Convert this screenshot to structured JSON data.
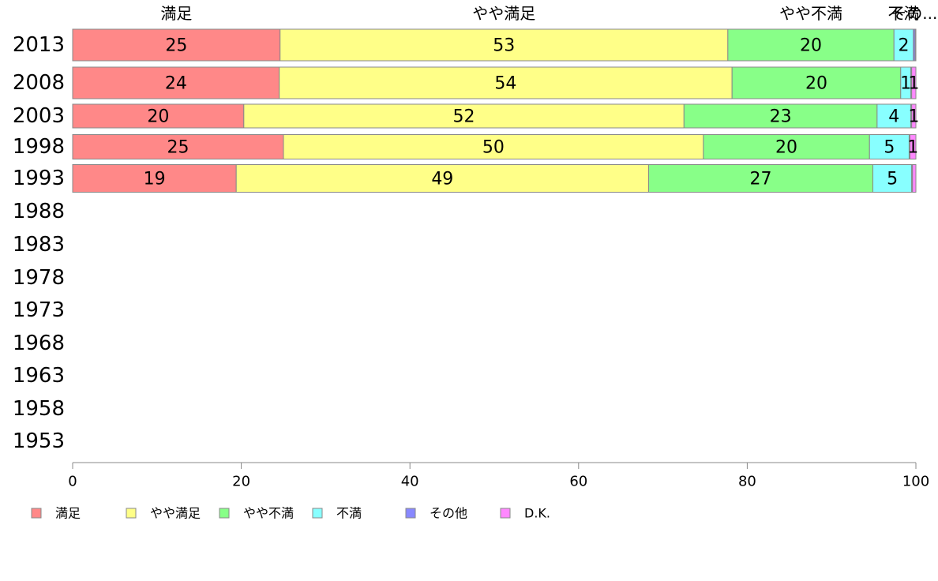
{
  "chart_data": {
    "type": "bar",
    "orientation": "horizontal",
    "stacked": true,
    "percent": true,
    "categories": [
      "2013",
      "2008",
      "2003",
      "1998",
      "1993",
      "1988",
      "1983",
      "1978",
      "1973",
      "1968",
      "1963",
      "1958",
      "1953"
    ],
    "xlim": [
      0,
      100
    ],
    "xticks": [
      0,
      20,
      40,
      60,
      80,
      100
    ],
    "grid": false,
    "legend_position": "bottom-left",
    "column_headers": [
      "満足",
      "やや満足",
      "やや不満",
      "不満",
      "その..."
    ],
    "series": [
      {
        "name": "満足",
        "color": "#ff8888",
        "values": [
          24.6,
          24.5,
          20.3,
          25.0,
          19.4,
          null,
          null,
          null,
          null,
          null,
          null,
          null,
          null
        ],
        "labels": [
          "25",
          "24",
          "20",
          "25",
          "19"
        ]
      },
      {
        "name": "やや満足",
        "color": "#ffff88",
        "values": [
          53.1,
          53.7,
          52.2,
          49.8,
          48.9,
          null,
          null,
          null,
          null,
          null,
          null,
          null,
          null
        ],
        "labels": [
          "53",
          "54",
          "52",
          "50",
          "49"
        ]
      },
      {
        "name": "やや不満",
        "color": "#88ff88",
        "values": [
          19.7,
          20.0,
          22.9,
          19.7,
          26.6,
          null,
          null,
          null,
          null,
          null,
          null,
          null,
          null
        ],
        "labels": [
          "20",
          "20",
          "23",
          "20",
          "27"
        ]
      },
      {
        "name": "不満",
        "color": "#88ffff",
        "values": [
          2.3,
          1.2,
          4.0,
          4.7,
          4.6,
          null,
          null,
          null,
          null,
          null,
          null,
          null,
          null
        ],
        "labels": [
          "2",
          "1",
          "4",
          "5",
          "5"
        ]
      },
      {
        "name": "その他",
        "color": "#8888ff",
        "values": [
          0.2,
          0.1,
          0.1,
          0.1,
          0.1,
          null,
          null,
          null,
          null,
          null,
          null,
          null,
          null
        ],
        "labels": [
          "",
          "",
          "",
          "",
          ""
        ]
      },
      {
        "name": "D.K.",
        "color": "#ff88ff",
        "values": [
          0.1,
          0.5,
          0.5,
          0.7,
          0.4,
          null,
          null,
          null,
          null,
          null,
          null,
          null,
          null
        ],
        "labels": [
          "",
          "1",
          "1",
          "1",
          ""
        ]
      }
    ]
  }
}
